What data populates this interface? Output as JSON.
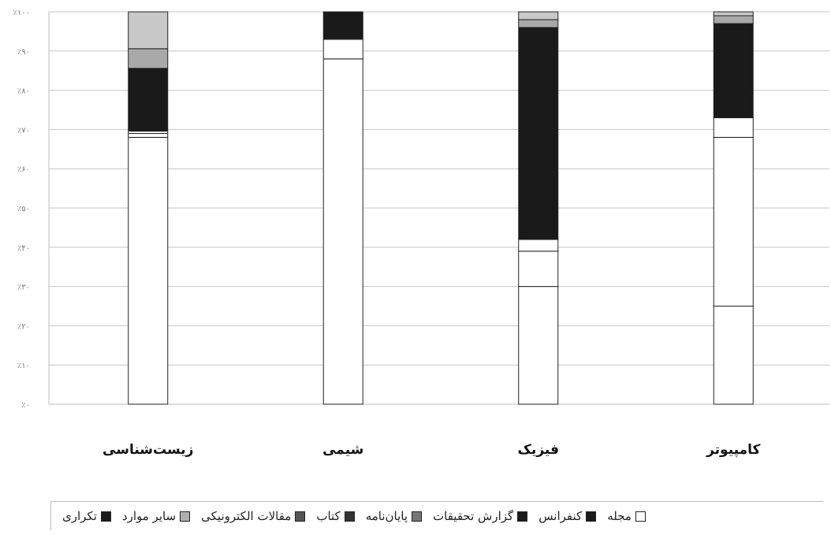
{
  "chart_data": {
    "type": "bar",
    "stacked": true,
    "percent": true,
    "categories": [
      "کامپیوتر",
      "فیزیک",
      "شیمی",
      "زیست‌شناسی"
    ],
    "yticks": [
      "٪۰",
      "٪۱۰",
      "٪۲۰",
      "٪۳۰",
      "٪۴۰",
      "٪۵۰",
      "٪۶۰",
      "٪۷۰",
      "٪۸۰",
      "٪۹۰",
      "٪۱۰۰"
    ],
    "ylim": [
      0,
      100
    ],
    "grid": true,
    "legend_position": "bottom",
    "series": [
      {
        "name": "مجله",
        "color": "#ffffff",
        "values": [
          25,
          30,
          88,
          68
        ]
      },
      {
        "name": "کنفرانس",
        "color": "#ffffff",
        "values": [
          43,
          9,
          5,
          1
        ]
      },
      {
        "name": "گزارش تحقیقات",
        "color": "#ffffff",
        "values": [
          5,
          3,
          0,
          0.6
        ]
      },
      {
        "name": "پایان‌نامه",
        "color": "#1a1a1a",
        "values": [
          0,
          0,
          7,
          0
        ]
      },
      {
        "name": "کتاب",
        "color": "#1a1a1a",
        "values": [
          24,
          54,
          0,
          16
        ]
      },
      {
        "name": "مقالات الکترونیکی",
        "color": "#1a1a1a",
        "values": [
          0,
          0,
          0,
          0
        ]
      },
      {
        "name": "سایر موارد",
        "color": "#a9a9a9",
        "values": [
          2,
          2,
          0,
          5
        ]
      },
      {
        "name": "تکراری",
        "color": "#c8c8c8",
        "values": [
          1,
          2,
          0,
          9.4
        ]
      }
    ]
  },
  "legend": {
    "items": [
      {
        "label": "تکراری",
        "color": "#1a1a1a"
      },
      {
        "label": "سایر موارد",
        "color": "#b0b0b0"
      },
      {
        "label": "مقالات الکترونیکی",
        "color": "#555555"
      },
      {
        "label": "کتاب",
        "color": "#333333"
      },
      {
        "label": "پایان‌نامه",
        "color": "#777777"
      },
      {
        "label": "گزارش تحقیقات",
        "color": "#1a1a1a"
      },
      {
        "label": "کنفرانس",
        "color": "#1a1a1a"
      },
      {
        "label": "مجله",
        "color": "#ffffff"
      }
    ]
  }
}
